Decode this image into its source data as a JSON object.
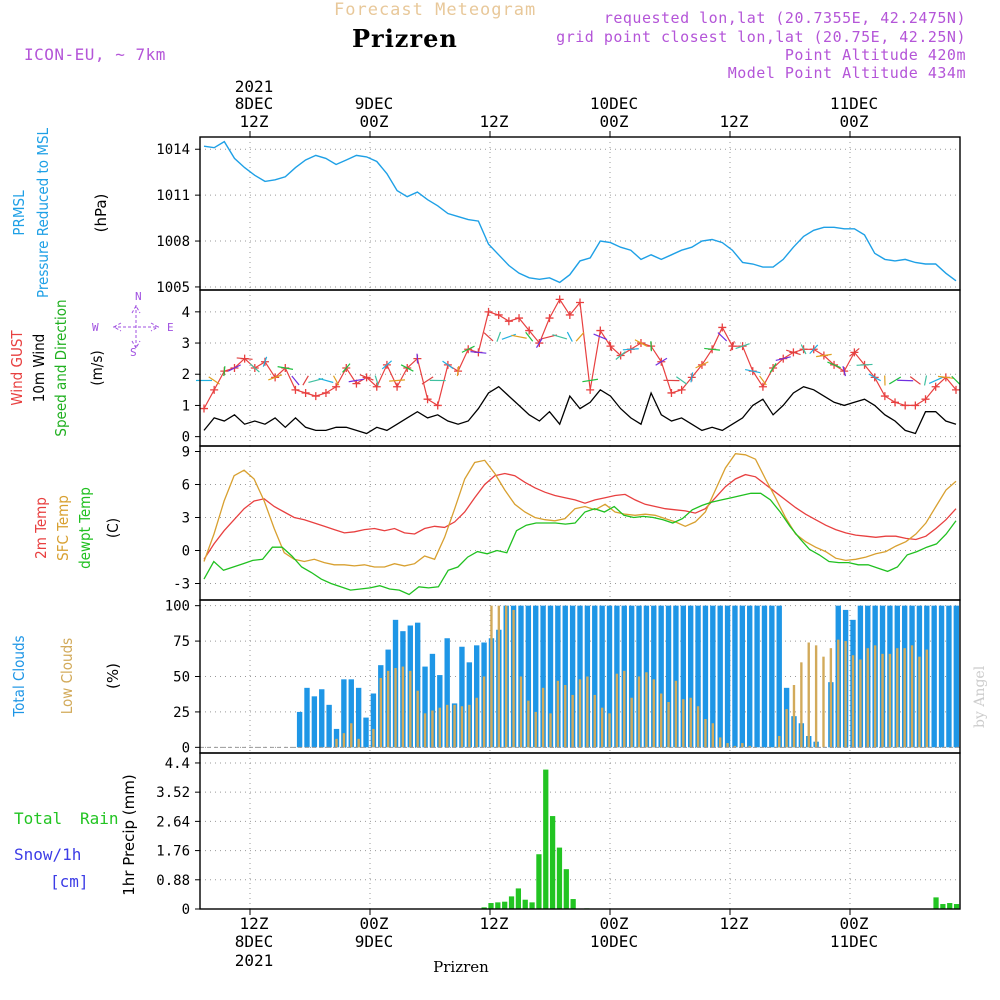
{
  "header": {
    "subtitle": "Forecast Meteogram",
    "title": "Prizren",
    "model": "ICON-EU, ~ 7km",
    "req": "requested lon,lat (20.7355E, 42.2475N)",
    "grid": "grid point closest lon,lat (20.75E, 42.25N)",
    "alt": "Point Altitude 420m",
    "model_alt": "Model Point Altitude 434m"
  },
  "footer": {
    "location": "Prizren"
  },
  "watermark": "by Angel",
  "colors": {
    "pressure": "#1ea0e6",
    "gust": "#e84040",
    "wind": "#000000",
    "direction": "#20b020",
    "temp": "#e84040",
    "sfc": "#d8a030",
    "dewpt": "#20c020",
    "total_clouds": "#1e96e6",
    "low_clouds": "#d2aa5a",
    "rain": "#22c422",
    "snow": "#3c3ce6",
    "compass": "#a050e0"
  },
  "chart_data": [
    {
      "type": "line",
      "panel": "pressure",
      "ylabel": [
        "PRMSL",
        "Pressure Reduced to MSL",
        "(hPa)"
      ],
      "ylim": [
        1004.8,
        1014.8
      ],
      "yticks": [
        1005,
        1008,
        1011,
        1014
      ],
      "series": [
        {
          "values": [
            1014.2,
            1014.1,
            1014.5,
            1013.4,
            1012.8,
            1012.3,
            1011.9,
            1012.0,
            1012.2,
            1012.8,
            1013.3,
            1013.6,
            1013.4,
            1013.0,
            1013.3,
            1013.6,
            1013.5,
            1013.2,
            1012.4,
            1011.3,
            1010.9,
            1011.2,
            1010.7,
            1010.3,
            1009.8,
            1009.6,
            1009.4,
            1009.3,
            1007.8,
            1007.1,
            1006.4,
            1005.9,
            1005.6,
            1005.5,
            1005.6,
            1005.3,
            1005.8,
            1006.7,
            1006.9,
            1008.0,
            1007.9,
            1007.6,
            1007.4,
            1006.8,
            1007.1,
            1006.8,
            1007.1,
            1007.4,
            1007.6,
            1008.0,
            1008.1,
            1007.9,
            1007.4,
            1006.6,
            1006.5,
            1006.3,
            1006.3,
            1006.8,
            1007.6,
            1008.3,
            1008.7,
            1008.9,
            1008.9,
            1008.8,
            1008.8,
            1008.4,
            1007.2,
            1006.8,
            1006.7,
            1006.8,
            1006.6,
            1006.5,
            1006.5,
            1005.9,
            1005.4
          ]
        }
      ]
    },
    {
      "type": "line",
      "panel": "wind",
      "ylabel": [
        "Wind GUST",
        "10m Wind",
        "Speed and Direction",
        "(m/s)"
      ],
      "compass": [
        "N",
        "S",
        "W",
        "E"
      ],
      "ylim": [
        -0.3,
        4.7
      ],
      "yticks": [
        0,
        1,
        2,
        3,
        4
      ],
      "series": [
        {
          "name": "Wind GUST",
          "values": [
            0.9,
            1.5,
            2.1,
            2.2,
            2.5,
            2.2,
            2.4,
            1.9,
            2.2,
            1.5,
            1.4,
            1.3,
            1.4,
            1.6,
            2.2,
            1.7,
            1.9,
            1.6,
            2.3,
            1.6,
            2.2,
            2.5,
            1.2,
            1.0,
            2.3,
            2.1,
            2.8,
            2.7,
            4.0,
            3.9,
            3.7,
            3.8,
            3.4,
            3.0,
            3.8,
            4.4,
            3.9,
            4.3,
            1.5,
            3.4,
            2.9,
            2.6,
            2.8,
            3.0,
            2.9,
            2.4,
            1.4,
            1.5,
            1.9,
            2.3,
            2.8,
            3.5,
            2.9,
            2.9,
            2.1,
            1.6,
            2.2,
            2.5,
            2.7,
            2.8,
            2.8,
            2.6,
            2.3,
            2.1,
            2.7,
            2.3,
            1.9,
            1.3,
            1.1,
            1.0,
            1.0,
            1.2,
            1.6,
            1.9,
            1.5
          ]
        },
        {
          "name": "10m Wind",
          "values": [
            0.2,
            0.6,
            0.5,
            0.7,
            0.4,
            0.5,
            0.4,
            0.6,
            0.3,
            0.6,
            0.3,
            0.2,
            0.2,
            0.3,
            0.3,
            0.2,
            0.1,
            0.3,
            0.2,
            0.4,
            0.6,
            0.8,
            0.6,
            0.7,
            0.5,
            0.4,
            0.5,
            0.9,
            1.4,
            1.6,
            1.3,
            1.0,
            0.7,
            0.5,
            0.8,
            0.4,
            1.3,
            0.9,
            1.1,
            1.5,
            1.3,
            0.9,
            0.6,
            0.4,
            1.4,
            0.7,
            0.5,
            0.6,
            0.4,
            0.2,
            0.3,
            0.2,
            0.4,
            0.6,
            1.0,
            1.2,
            0.7,
            1.0,
            1.4,
            1.6,
            1.5,
            1.3,
            1.1,
            1.0,
            1.1,
            1.2,
            1.0,
            0.7,
            0.5,
            0.2,
            0.1,
            0.8,
            0.8,
            0.5,
            0.4
          ]
        }
      ]
    },
    {
      "type": "line",
      "panel": "temperature",
      "ylabel": [
        "2m Temp",
        "SFC Temp",
        "dewpt Temp",
        "(C)"
      ],
      "ylim": [
        -4.5,
        9.5
      ],
      "yticks": [
        -3,
        0,
        3,
        6,
        9
      ],
      "series": [
        {
          "name": "2m Temp",
          "values": [
            -0.8,
            0.6,
            1.8,
            2.8,
            3.8,
            4.5,
            4.7,
            4.0,
            3.5,
            3.0,
            2.8,
            2.5,
            2.2,
            1.9,
            1.6,
            1.7,
            1.9,
            2.0,
            1.8,
            2.0,
            1.6,
            1.5,
            2.0,
            2.2,
            2.1,
            2.6,
            3.5,
            4.8,
            6.0,
            6.8,
            7.0,
            6.8,
            6.2,
            5.7,
            5.3,
            5.0,
            4.8,
            4.6,
            4.3,
            4.6,
            4.8,
            5.0,
            5.1,
            4.6,
            4.2,
            4.0,
            3.8,
            3.7,
            3.6,
            3.4,
            3.8,
            4.8,
            5.8,
            6.5,
            6.9,
            6.7,
            6.0,
            5.3,
            4.6,
            3.9,
            3.3,
            2.8,
            2.3,
            1.9,
            1.6,
            1.4,
            1.3,
            1.2,
            1.3,
            1.3,
            1.1,
            1.0,
            1.3,
            2.0,
            2.8,
            3.8
          ]
        },
        {
          "name": "SFC Temp",
          "values": [
            -1.0,
            1.5,
            4.5,
            6.8,
            7.3,
            6.5,
            4.5,
            2.0,
            -0.2,
            -0.8,
            -1.0,
            -0.8,
            -1.1,
            -1.3,
            -1.3,
            -1.4,
            -1.3,
            -1.5,
            -1.5,
            -1.2,
            -1.4,
            -1.2,
            -0.5,
            -0.8,
            1.2,
            3.8,
            6.5,
            8.0,
            8.2,
            7.0,
            5.5,
            4.2,
            3.5,
            3.0,
            2.8,
            2.7,
            2.9,
            3.8,
            4.0,
            3.7,
            4.2,
            3.5,
            3.3,
            3.2,
            3.3,
            3.2,
            2.9,
            2.6,
            2.2,
            2.6,
            3.5,
            5.5,
            7.5,
            8.8,
            8.7,
            8.3,
            6.5,
            4.8,
            3.0,
            1.5,
            0.8,
            0.3,
            -0.1,
            -0.7,
            -0.9,
            -0.8,
            -0.6,
            -0.3,
            -0.1,
            0.4,
            0.8,
            1.5,
            2.5,
            4.0,
            5.5,
            6.3
          ]
        },
        {
          "name": "dewpt Temp",
          "values": [
            -2.6,
            -1.0,
            -1.8,
            -1.5,
            -1.2,
            -0.9,
            -0.8,
            0.3,
            0.3,
            -0.5,
            -1.5,
            -2.0,
            -2.6,
            -3.0,
            -3.3,
            -3.6,
            -3.5,
            -3.4,
            -3.2,
            -3.5,
            -3.6,
            -4.0,
            -3.3,
            -3.4,
            -3.3,
            -1.8,
            -1.5,
            -0.6,
            -0.1,
            -0.3,
            0.0,
            -0.2,
            1.8,
            2.3,
            2.5,
            2.5,
            2.5,
            2.4,
            2.5,
            3.5,
            3.8,
            3.5,
            4.0,
            3.2,
            3.0,
            3.1,
            3.0,
            2.8,
            2.5,
            2.9,
            3.7,
            4.1,
            4.4,
            4.6,
            4.8,
            5.0,
            5.2,
            5.2,
            4.6,
            3.5,
            2.2,
            1.1,
            0.1,
            -0.4,
            -1.0,
            -1.1,
            -1.1,
            -1.3,
            -1.3,
            -1.6,
            -1.9,
            -1.5,
            -0.4,
            -0.1,
            0.3,
            0.6,
            1.5,
            2.7
          ]
        }
      ]
    },
    {
      "type": "bar",
      "panel": "clouds",
      "ylabel": [
        "Total Clouds",
        "Low Clouds",
        "(%)"
      ],
      "ylim": [
        0,
        100
      ],
      "yticks": [
        0,
        25,
        50,
        75,
        100
      ],
      "series": [
        {
          "name": "Total Clouds",
          "values": [
            0,
            0,
            0,
            0,
            0,
            0,
            0,
            0,
            0,
            0,
            0,
            0,
            0,
            25,
            42,
            36,
            41,
            30,
            13,
            48,
            48,
            42,
            21,
            38,
            58,
            69,
            90,
            82,
            86,
            88,
            57,
            66,
            51,
            77,
            31,
            71,
            60,
            72,
            74,
            77,
            83,
            100,
            100,
            100,
            100,
            100,
            100,
            100,
            100,
            100,
            100,
            100,
            100,
            100,
            100,
            100,
            100,
            100,
            100,
            100,
            100,
            100,
            100,
            100,
            100,
            100,
            100,
            100,
            100,
            100,
            100,
            100,
            100,
            100,
            100,
            100,
            100,
            100,
            100,
            42,
            22,
            17,
            8,
            4,
            0,
            46,
            100,
            97,
            90,
            100,
            100,
            100,
            100,
            100,
            100,
            100,
            100,
            100,
            100,
            100,
            100,
            100,
            100
          ]
        },
        {
          "name": "Low Clouds",
          "values": [
            0,
            0,
            0,
            0,
            0,
            0,
            0,
            0,
            0,
            0,
            0,
            0,
            0,
            0,
            0,
            0,
            0,
            0,
            6,
            10,
            17,
            6,
            0,
            13,
            49,
            54,
            56,
            57,
            54,
            40,
            24,
            26,
            28,
            30,
            30,
            29,
            30,
            35,
            50,
            100,
            100,
            100,
            97,
            50,
            33,
            25,
            42,
            24,
            47,
            44,
            37,
            48,
            50,
            37,
            28,
            24,
            52,
            54,
            35,
            50,
            53,
            48,
            38,
            32,
            47,
            34,
            35,
            29,
            20,
            17,
            7,
            3,
            1,
            3,
            1,
            0,
            0,
            0,
            8,
            27,
            44,
            60,
            74,
            72,
            64,
            70,
            76,
            75,
            65,
            62,
            70,
            72,
            66,
            66,
            70,
            70,
            72,
            64,
            69
          ]
        }
      ]
    },
    {
      "type": "bar",
      "panel": "precip",
      "ylabel": "1hr Precip (mm)",
      "legend": [
        "Total Rain",
        "Snow/1h",
        "[cm]"
      ],
      "ylim": [
        0,
        4.4
      ],
      "yticks": [
        "0",
        "0.88",
        "1.76",
        "2.64",
        "3.52",
        "4.4"
      ],
      "series": [
        {
          "name": "Total Rain",
          "values": [
            0,
            0,
            0,
            0,
            0,
            0,
            0,
            0,
            0,
            0,
            0,
            0,
            0,
            0,
            0,
            0,
            0,
            0,
            0,
            0,
            0,
            0,
            0,
            0,
            0,
            0,
            0,
            0,
            0,
            0,
            0,
            0,
            0,
            0,
            0,
            0,
            0,
            0,
            0,
            0,
            0,
            0.05,
            0.18,
            0.2,
            0.22,
            0.38,
            0.62,
            0.28,
            0.2,
            1.65,
            4.2,
            2.8,
            1.85,
            1.2,
            0.3,
            0,
            0.02,
            0,
            0,
            0,
            0,
            0,
            0,
            0,
            0,
            0,
            0,
            0,
            0,
            0,
            0,
            0,
            0,
            0,
            0,
            0,
            0,
            0,
            0,
            0,
            0,
            0,
            0,
            0,
            0,
            0,
            0,
            0,
            0,
            0,
            0,
            0,
            0,
            0,
            0,
            0,
            0,
            0,
            0,
            0,
            0,
            0,
            0,
            0,
            0,
            0,
            0,
            0.35,
            0.15,
            0.18,
            0.15
          ]
        }
      ]
    }
  ],
  "time_axis": {
    "top_labels": [
      {
        "line1": "2021",
        "line2": "8DEC",
        "line3": "12Z"
      },
      {
        "line1": "",
        "line2": "9DEC",
        "line3": "00Z"
      },
      {
        "line1": "",
        "line2": "",
        "line3": "12Z"
      },
      {
        "line1": "",
        "line2": "10DEC",
        "line3": "00Z"
      },
      {
        "line1": "",
        "line2": "",
        "line3": "12Z"
      },
      {
        "line1": "",
        "line2": "11DEC",
        "line3": "00Z"
      }
    ],
    "bottom_labels": [
      {
        "line1": "12Z",
        "line2": "8DEC",
        "line3": "2021"
      },
      {
        "line1": "00Z",
        "line2": "9DEC",
        "line3": ""
      },
      {
        "line1": "12Z",
        "line2": "",
        "line3": ""
      },
      {
        "line1": "00Z",
        "line2": "10DEC",
        "line3": ""
      },
      {
        "line1": "12Z",
        "line2": "",
        "line3": ""
      },
      {
        "line1": "00Z",
        "line2": "11DEC",
        "line3": ""
      }
    ]
  }
}
